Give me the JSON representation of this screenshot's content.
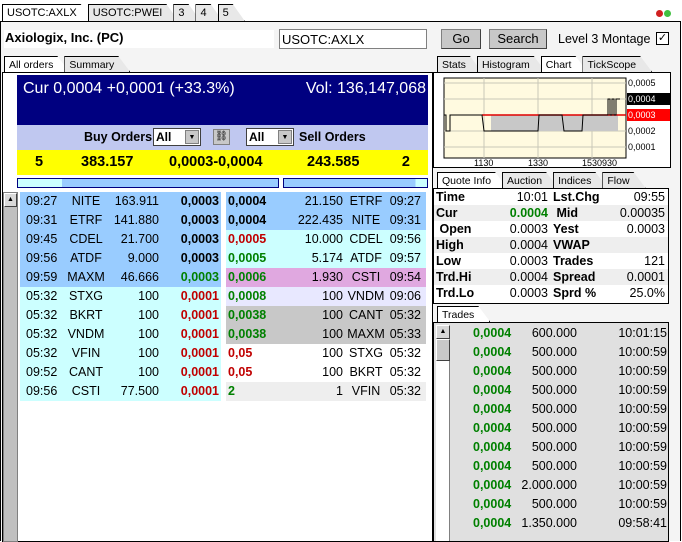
{
  "top_tabs": [
    "USOTC:AXLX",
    "USOTC:PWEI",
    "3",
    "4",
    "5"
  ],
  "status_icons": [
    "red-dot-icon",
    "green-dot-icon"
  ],
  "company": "Axiologix, Inc. (PC)",
  "symbol_input": "USOTC:AXLX",
  "go_label": "Go",
  "search_label": "Search",
  "montage_label": "Level 3 Montage",
  "montage_checked": true,
  "left_tabs": [
    "All orders",
    "Summary"
  ],
  "header": {
    "cur": "Cur 0,0004 +0,0001 (+33.3%)",
    "vol": "Vol: 136,147,068"
  },
  "filter": {
    "buy_label": "Buy Orders",
    "buy_select": "All",
    "sell_select": "All",
    "sell_label": "Sell Orders"
  },
  "summary": {
    "buy_count": "5",
    "buy_size": "383.157",
    "spread": "0,0003-0,0004",
    "sell_size": "243.585",
    "sell_count": "2"
  },
  "colors": {
    "header": "#000080",
    "band": "#c0c8f0",
    "summary": "#ffff00",
    "green": "#008000",
    "red": "#c00000"
  },
  "buy_orders": [
    {
      "time": "09:27",
      "mm": "NITE",
      "size": "163.911",
      "price": "0,0003",
      "pc": "#000000",
      "bg": "#99ccff"
    },
    {
      "time": "09:31",
      "mm": "ETRF",
      "size": "141.880",
      "price": "0,0003",
      "pc": "#000000",
      "bg": "#99ccff"
    },
    {
      "time": "09:45",
      "mm": "CDEL",
      "size": "21.700",
      "price": "0,0003",
      "pc": "#000000",
      "bg": "#99ccff"
    },
    {
      "time": "09:56",
      "mm": "ATDF",
      "size": "9.000",
      "price": "0,0003",
      "pc": "#000000",
      "bg": "#99ccff"
    },
    {
      "time": "09:59",
      "mm": "MAXM",
      "size": "46.666",
      "price": "0,0003",
      "pc": "#008000",
      "bg": "#99ccff"
    },
    {
      "time": "05:32",
      "mm": "STXG",
      "size": "100",
      "price": "0,0001",
      "pc": "#c00000",
      "bg": "#ccffff"
    },
    {
      "time": "05:32",
      "mm": "BKRT",
      "size": "100",
      "price": "0,0001",
      "pc": "#c00000",
      "bg": "#ccffff"
    },
    {
      "time": "05:32",
      "mm": "VNDM",
      "size": "100",
      "price": "0,0001",
      "pc": "#c00000",
      "bg": "#ccffff"
    },
    {
      "time": "05:32",
      "mm": "VFIN",
      "size": "100",
      "price": "0,0001",
      "pc": "#c00000",
      "bg": "#ccffff"
    },
    {
      "time": "09:52",
      "mm": "CANT",
      "size": "100",
      "price": "0,0001",
      "pc": "#c00000",
      "bg": "#ccffff"
    },
    {
      "time": "09:56",
      "mm": "CSTI",
      "size": "77.500",
      "price": "0,0001",
      "pc": "#c00000",
      "bg": "#ccffff"
    }
  ],
  "sell_orders": [
    {
      "price": "0,0004",
      "size": "21.150",
      "mm": "ETRF",
      "time": "09:27",
      "pc": "#000000",
      "bg": "#99ccff"
    },
    {
      "price": "0,0004",
      "size": "222.435",
      "mm": "NITE",
      "time": "09:31",
      "pc": "#000000",
      "bg": "#99ccff"
    },
    {
      "price": "0,0005",
      "size": "10.000",
      "mm": "CDEL",
      "time": "09:56",
      "pc": "#c00000",
      "bg": "#ccffff"
    },
    {
      "price": "0,0005",
      "size": "5.174",
      "mm": "ATDF",
      "time": "09:57",
      "pc": "#008000",
      "bg": "#ccffff"
    },
    {
      "price": "0,0006",
      "size": "1.930",
      "mm": "CSTI",
      "time": "09:54",
      "pc": "#008000",
      "bg": "#e0a8e0"
    },
    {
      "price": "0,0008",
      "size": "100",
      "mm": "VNDM",
      "time": "09:06",
      "pc": "#008000",
      "bg": "#e8e8ff"
    },
    {
      "price": "0,0038",
      "size": "100",
      "mm": "CANT",
      "time": "05:32",
      "pc": "#008000",
      "bg": "#c8c8c8"
    },
    {
      "price": "0,0038",
      "size": "100",
      "mm": "MAXM",
      "time": "05:33",
      "pc": "#008000",
      "bg": "#c8c8c8"
    },
    {
      "price": "0,05",
      "size": "100",
      "mm": "STXG",
      "time": "05:32",
      "pc": "#c00000",
      "bg": "#ffffff"
    },
    {
      "price": "0,05",
      "size": "100",
      "mm": "BKRT",
      "time": "05:32",
      "pc": "#c00000",
      "bg": "#ffffff"
    },
    {
      "price": "2",
      "size": "1",
      "mm": "VFIN",
      "time": "05:32",
      "pc": "#008000",
      "bg": "#eeeeee"
    }
  ],
  "chart_tabs": [
    "Stats",
    "Histogram",
    "Chart",
    "TickScope"
  ],
  "chart": {
    "y_ticks": [
      "0,0005",
      "0,0004",
      "0,0003",
      "0,0002",
      "0,0001"
    ],
    "x_ticks": [
      "1130",
      "1330",
      "1530930"
    ],
    "last": "0,0004",
    "prev": "0,0003"
  },
  "quote_tabs": [
    "Quote Info",
    "Auction",
    "Indices",
    "Flow"
  ],
  "quote": [
    {
      "l": "Time",
      "v": "10:01",
      "l2": "Lst.Chg",
      "v2": "09:55",
      "bg": "#ffffff"
    },
    {
      "l": "Cur",
      "v": "0.0004",
      "l2": " Mid",
      "v2": "0.00035",
      "bg": "#eeeeee",
      "vc": "#008000"
    },
    {
      "l": " Open",
      "v": "0.0003",
      "l2": "Yest",
      "v2": "0.0003",
      "bg": "#ffffff"
    },
    {
      "l": "High",
      "v": "0.0004",
      "l2": "VWAP",
      "v2": "",
      "bg": "#eeeeee"
    },
    {
      "l": "Low",
      "v": "0.0003",
      "l2": "Trades",
      "v2": "121",
      "bg": "#ffffff"
    },
    {
      "l": "Trd.Hi",
      "v": "0.0004",
      "l2": "Spread",
      "v2": "0.0001",
      "bg": "#eeeeee"
    },
    {
      "l": "Trd.Lo",
      "v": "0.0003",
      "l2": "Sprd %",
      "v2": "25.0%",
      "bg": "#ffffff"
    }
  ],
  "trades_tab": "Trades",
  "trades": [
    {
      "p": "0,0004",
      "s": "600.000",
      "t": "10:01:15"
    },
    {
      "p": "0,0004",
      "s": "500.000",
      "t": "10:00:59"
    },
    {
      "p": "0,0004",
      "s": "500.000",
      "t": "10:00:59"
    },
    {
      "p": "0,0004",
      "s": "500.000",
      "t": "10:00:59"
    },
    {
      "p": "0,0004",
      "s": "500.000",
      "t": "10:00:59"
    },
    {
      "p": "0,0004",
      "s": "500.000",
      "t": "10:00:59"
    },
    {
      "p": "0,0004",
      "s": "500.000",
      "t": "10:00:59"
    },
    {
      "p": "0,0004",
      "s": "500.000",
      "t": "10:00:59"
    },
    {
      "p": "0,0004",
      "s": "2.000.000",
      "t": "10:00:59"
    },
    {
      "p": "0,0004",
      "s": "500.000",
      "t": "10:00:59"
    },
    {
      "p": "0,0004",
      "s": "1.350.000",
      "t": "09:58:41"
    }
  ]
}
